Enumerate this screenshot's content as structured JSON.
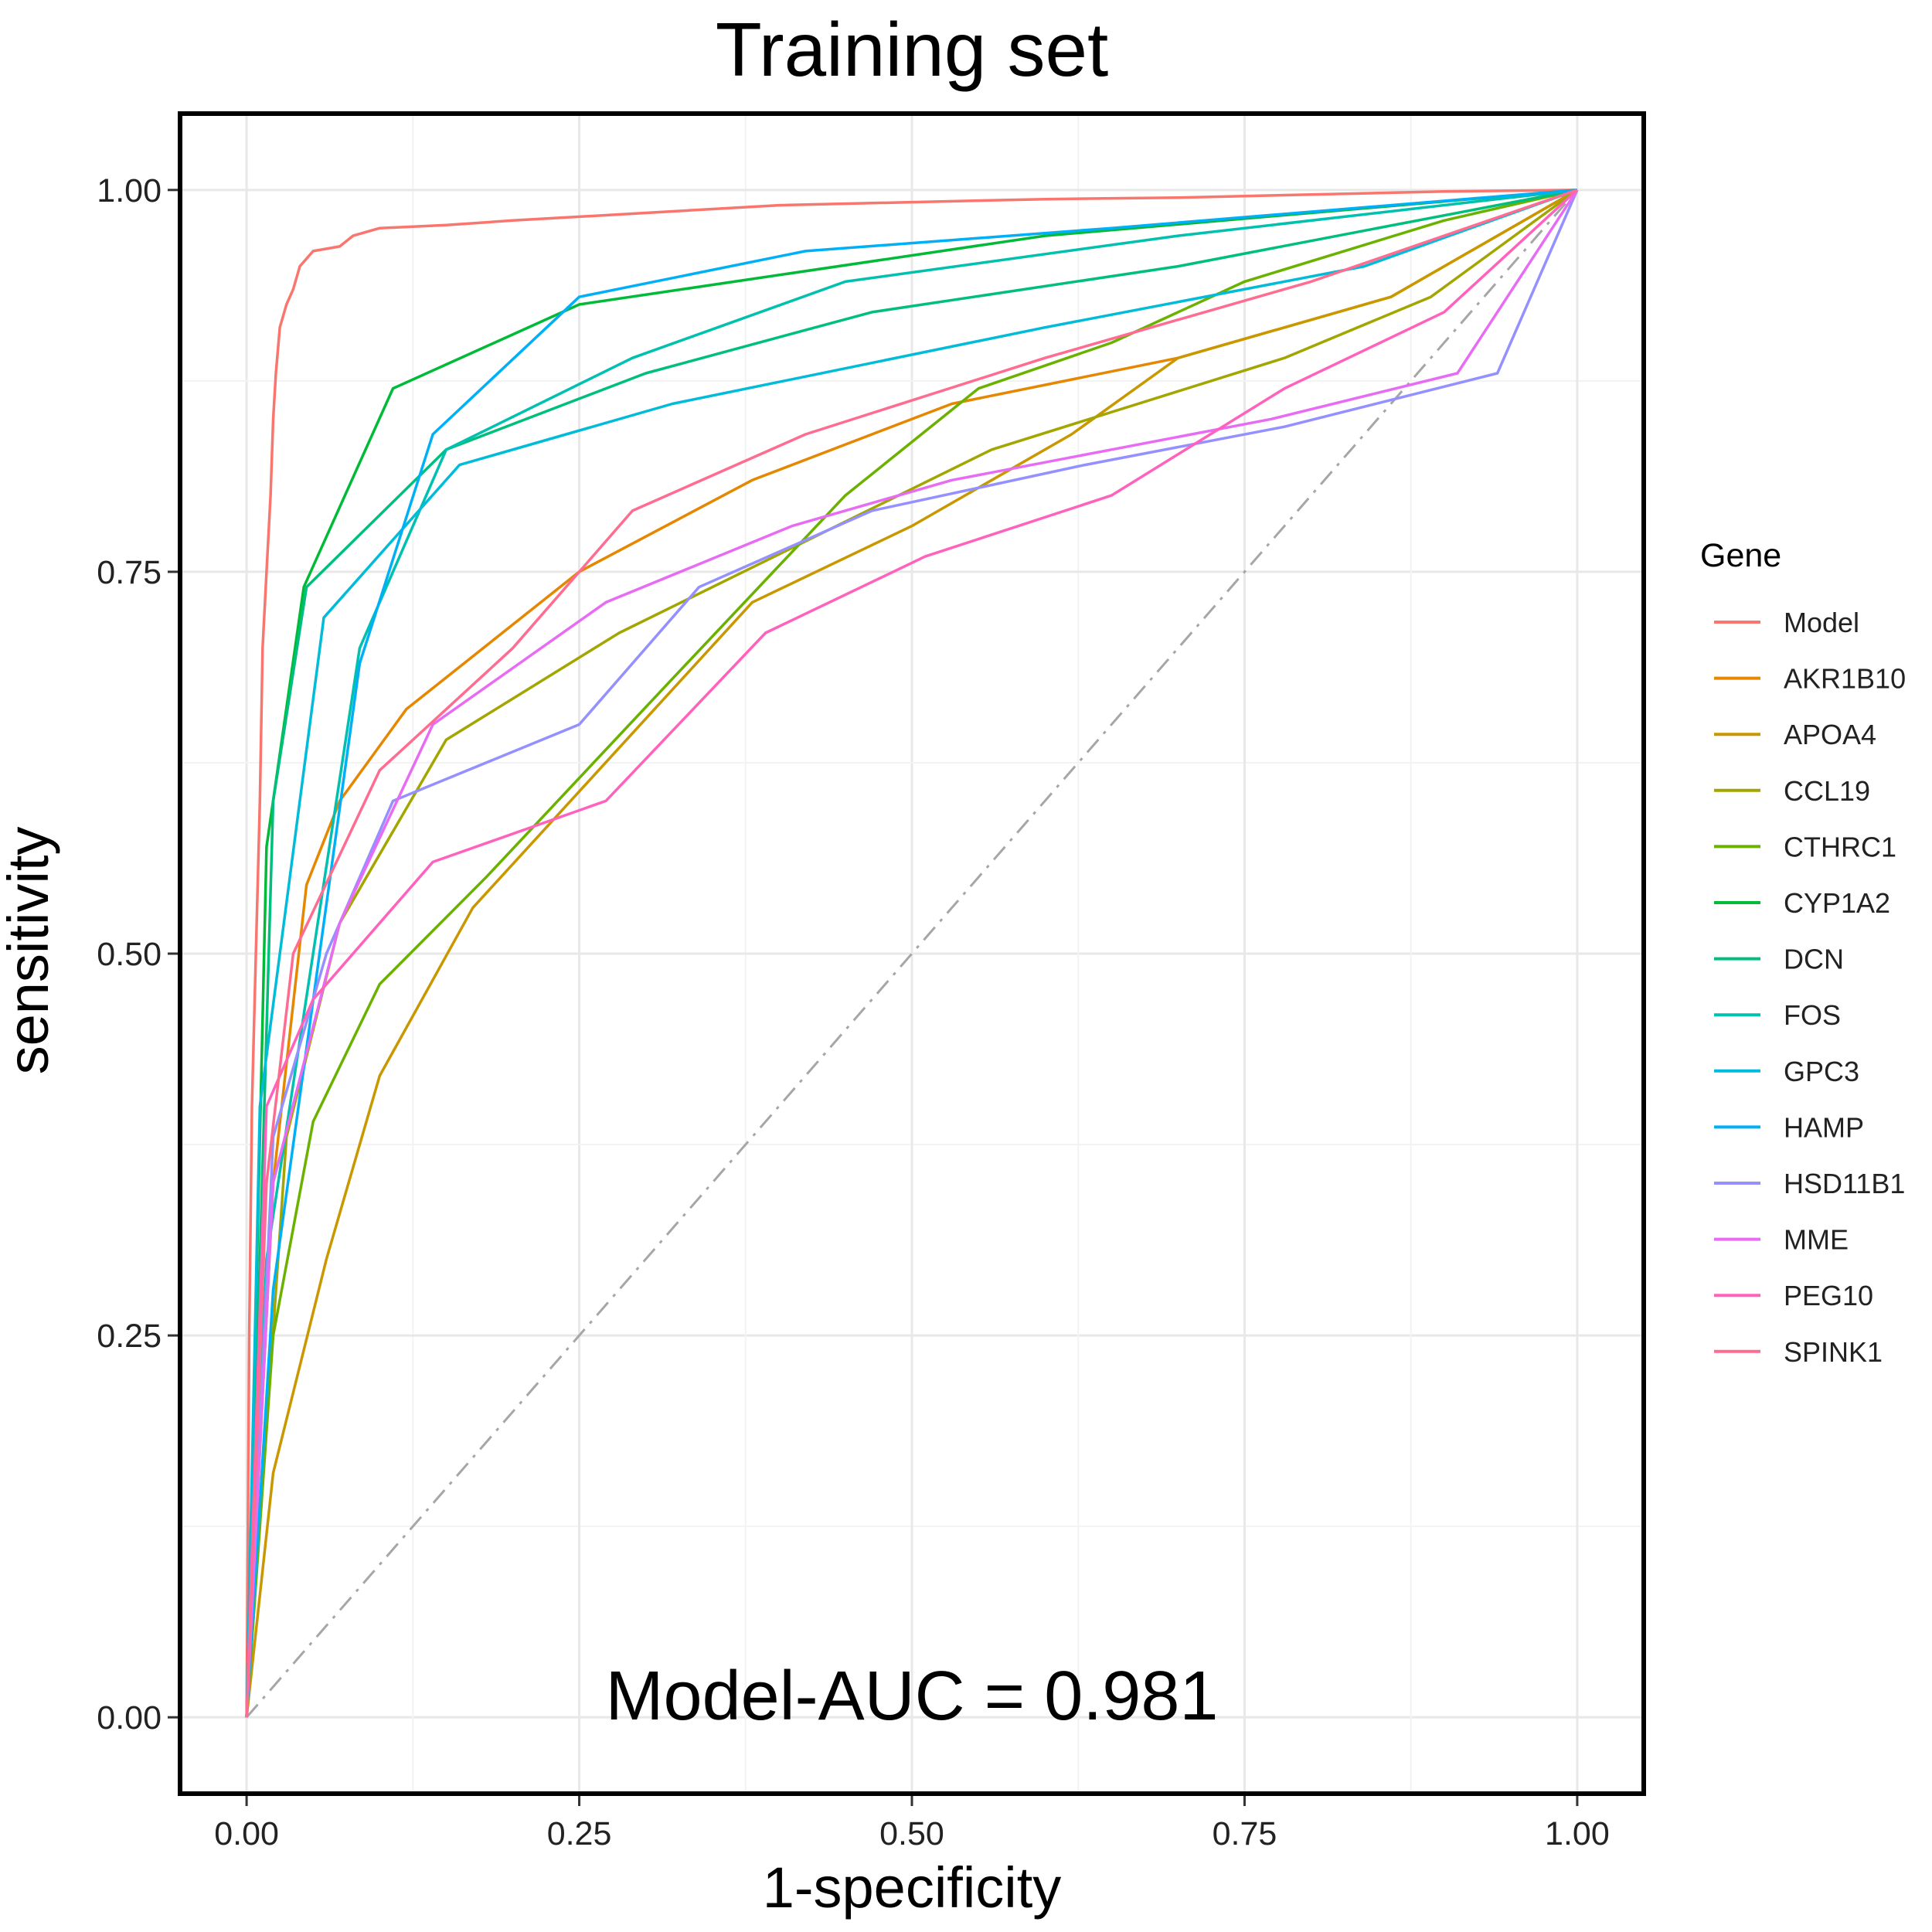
{
  "chart_data": {
    "type": "line",
    "title": "Training set",
    "xlabel": "1-specificity",
    "ylabel": "sensitivity",
    "xlim": [
      -0.05,
      1.05
    ],
    "ylim": [
      -0.05,
      1.05
    ],
    "x_ticks": [
      "0.00",
      "0.25",
      "0.50",
      "0.75",
      "1.00"
    ],
    "y_ticks": [
      "0.00",
      "0.25",
      "0.50",
      "0.75",
      "1.00"
    ],
    "grid": true,
    "legend_title": "Gene",
    "legend_position": "right",
    "annotation": "Model-AUC =  0.981",
    "reference_line": {
      "style": "dash-dot",
      "color": "#a6a6a6",
      "points": [
        [
          0,
          0
        ],
        [
          1,
          1
        ]
      ]
    },
    "series": [
      {
        "name": "Model",
        "color": "#F8766D",
        "points": [
          [
            0,
            0
          ],
          [
            0.002,
            0.25
          ],
          [
            0.004,
            0.4
          ],
          [
            0.007,
            0.5
          ],
          [
            0.01,
            0.6
          ],
          [
            0.012,
            0.7
          ],
          [
            0.015,
            0.75
          ],
          [
            0.018,
            0.8
          ],
          [
            0.02,
            0.85
          ],
          [
            0.022,
            0.88
          ],
          [
            0.025,
            0.91
          ],
          [
            0.03,
            0.925
          ],
          [
            0.035,
            0.935
          ],
          [
            0.04,
            0.95
          ],
          [
            0.05,
            0.96
          ],
          [
            0.07,
            0.963
          ],
          [
            0.08,
            0.97
          ],
          [
            0.1,
            0.975
          ],
          [
            0.15,
            0.977
          ],
          [
            0.2,
            0.98
          ],
          [
            0.3,
            0.985
          ],
          [
            0.4,
            0.99
          ],
          [
            0.5,
            0.992
          ],
          [
            0.6,
            0.994
          ],
          [
            0.7,
            0.995
          ],
          [
            0.8,
            0.997
          ],
          [
            0.9,
            0.999
          ],
          [
            1,
            1
          ]
        ]
      },
      {
        "name": "AKR1B10",
        "color": "#E58700",
        "points": [
          [
            0,
            0
          ],
          [
            0.02,
            0.35
          ],
          [
            0.045,
            0.545
          ],
          [
            0.07,
            0.6
          ],
          [
            0.12,
            0.66
          ],
          [
            0.25,
            0.75
          ],
          [
            0.38,
            0.81
          ],
          [
            0.53,
            0.86
          ],
          [
            0.7,
            0.89
          ],
          [
            0.86,
            0.93
          ],
          [
            1,
            1
          ]
        ]
      },
      {
        "name": "APOA4",
        "color": "#C99800",
        "points": [
          [
            0,
            0
          ],
          [
            0.02,
            0.16
          ],
          [
            0.06,
            0.3
          ],
          [
            0.1,
            0.42
          ],
          [
            0.17,
            0.53
          ],
          [
            0.38,
            0.73
          ],
          [
            0.5,
            0.78
          ],
          [
            0.62,
            0.84
          ],
          [
            0.7,
            0.89
          ],
          [
            0.86,
            0.93
          ],
          [
            1,
            1
          ]
        ]
      },
      {
        "name": "CCL19",
        "color": "#A3A500",
        "points": [
          [
            0,
            0
          ],
          [
            0.03,
            0.38
          ],
          [
            0.07,
            0.52
          ],
          [
            0.15,
            0.64
          ],
          [
            0.28,
            0.71
          ],
          [
            0.42,
            0.77
          ],
          [
            0.56,
            0.83
          ],
          [
            0.78,
            0.89
          ],
          [
            0.89,
            0.93
          ],
          [
            1,
            1
          ]
        ]
      },
      {
        "name": "CTHRC1",
        "color": "#6BB100",
        "points": [
          [
            0,
            0
          ],
          [
            0.02,
            0.25
          ],
          [
            0.05,
            0.39
          ],
          [
            0.1,
            0.48
          ],
          [
            0.18,
            0.55
          ],
          [
            0.32,
            0.68
          ],
          [
            0.45,
            0.8
          ],
          [
            0.55,
            0.87
          ],
          [
            0.65,
            0.9
          ],
          [
            0.75,
            0.94
          ],
          [
            0.9,
            0.98
          ],
          [
            1,
            1
          ]
        ]
      },
      {
        "name": "CYP1A2",
        "color": "#00BA38",
        "points": [
          [
            0,
            0
          ],
          [
            0.015,
            0.57
          ],
          [
            0.043,
            0.74
          ],
          [
            0.11,
            0.87
          ],
          [
            0.25,
            0.925
          ],
          [
            0.6,
            0.97
          ],
          [
            1,
            1
          ]
        ]
      },
      {
        "name": "DCN",
        "color": "#00BF7D",
        "points": [
          [
            0,
            0
          ],
          [
            0.02,
            0.6
          ],
          [
            0.045,
            0.74
          ],
          [
            0.15,
            0.83
          ],
          [
            0.3,
            0.88
          ],
          [
            0.47,
            0.92
          ],
          [
            0.7,
            0.95
          ],
          [
            1,
            1
          ]
        ]
      },
      {
        "name": "FOS",
        "color": "#00C0AF",
        "points": [
          [
            0,
            0
          ],
          [
            0.015,
            0.3
          ],
          [
            0.085,
            0.7
          ],
          [
            0.15,
            0.83
          ],
          [
            0.29,
            0.89
          ],
          [
            0.45,
            0.94
          ],
          [
            0.7,
            0.97
          ],
          [
            1,
            1
          ]
        ]
      },
      {
        "name": "GPC3",
        "color": "#00BCD8",
        "points": [
          [
            0,
            0
          ],
          [
            0.01,
            0.4
          ],
          [
            0.058,
            0.72
          ],
          [
            0.16,
            0.82
          ],
          [
            0.32,
            0.86
          ],
          [
            0.6,
            0.91
          ],
          [
            0.84,
            0.95
          ],
          [
            1,
            1
          ]
        ]
      },
      {
        "name": "HAMP",
        "color": "#00B0F6",
        "points": [
          [
            0,
            0
          ],
          [
            0.02,
            0.28
          ],
          [
            0.085,
            0.69
          ],
          [
            0.14,
            0.84
          ],
          [
            0.25,
            0.93
          ],
          [
            0.42,
            0.96
          ],
          [
            0.65,
            0.975
          ],
          [
            1,
            1
          ]
        ]
      },
      {
        "name": "HSD11B1",
        "color": "#9590FF",
        "points": [
          [
            0,
            0
          ],
          [
            0.02,
            0.38
          ],
          [
            0.06,
            0.5
          ],
          [
            0.11,
            0.6
          ],
          [
            0.25,
            0.65
          ],
          [
            0.34,
            0.74
          ],
          [
            0.47,
            0.79
          ],
          [
            0.63,
            0.82
          ],
          [
            0.78,
            0.845
          ],
          [
            0.94,
            0.88
          ],
          [
            1,
            1
          ]
        ]
      },
      {
        "name": "MME",
        "color": "#E76BF3",
        "points": [
          [
            0,
            0
          ],
          [
            0.02,
            0.35
          ],
          [
            0.07,
            0.52
          ],
          [
            0.14,
            0.65
          ],
          [
            0.27,
            0.73
          ],
          [
            0.41,
            0.78
          ],
          [
            0.53,
            0.81
          ],
          [
            0.65,
            0.83
          ],
          [
            0.77,
            0.85
          ],
          [
            0.91,
            0.88
          ],
          [
            1,
            1
          ]
        ]
      },
      {
        "name": "PEG10",
        "color": "#FF62BC",
        "points": [
          [
            0,
            0
          ],
          [
            0.015,
            0.4
          ],
          [
            0.05,
            0.47
          ],
          [
            0.14,
            0.56
          ],
          [
            0.27,
            0.6
          ],
          [
            0.39,
            0.71
          ],
          [
            0.51,
            0.76
          ],
          [
            0.65,
            0.8
          ],
          [
            0.78,
            0.87
          ],
          [
            0.9,
            0.92
          ],
          [
            1,
            1
          ]
        ]
      },
      {
        "name": "SPINK1",
        "color": "#FF6C91",
        "points": [
          [
            0,
            0
          ],
          [
            0.015,
            0.35
          ],
          [
            0.035,
            0.5
          ],
          [
            0.1,
            0.62
          ],
          [
            0.2,
            0.7
          ],
          [
            0.29,
            0.79
          ],
          [
            0.42,
            0.84
          ],
          [
            0.6,
            0.89
          ],
          [
            0.8,
            0.94
          ],
          [
            1,
            1
          ]
        ]
      }
    ]
  }
}
